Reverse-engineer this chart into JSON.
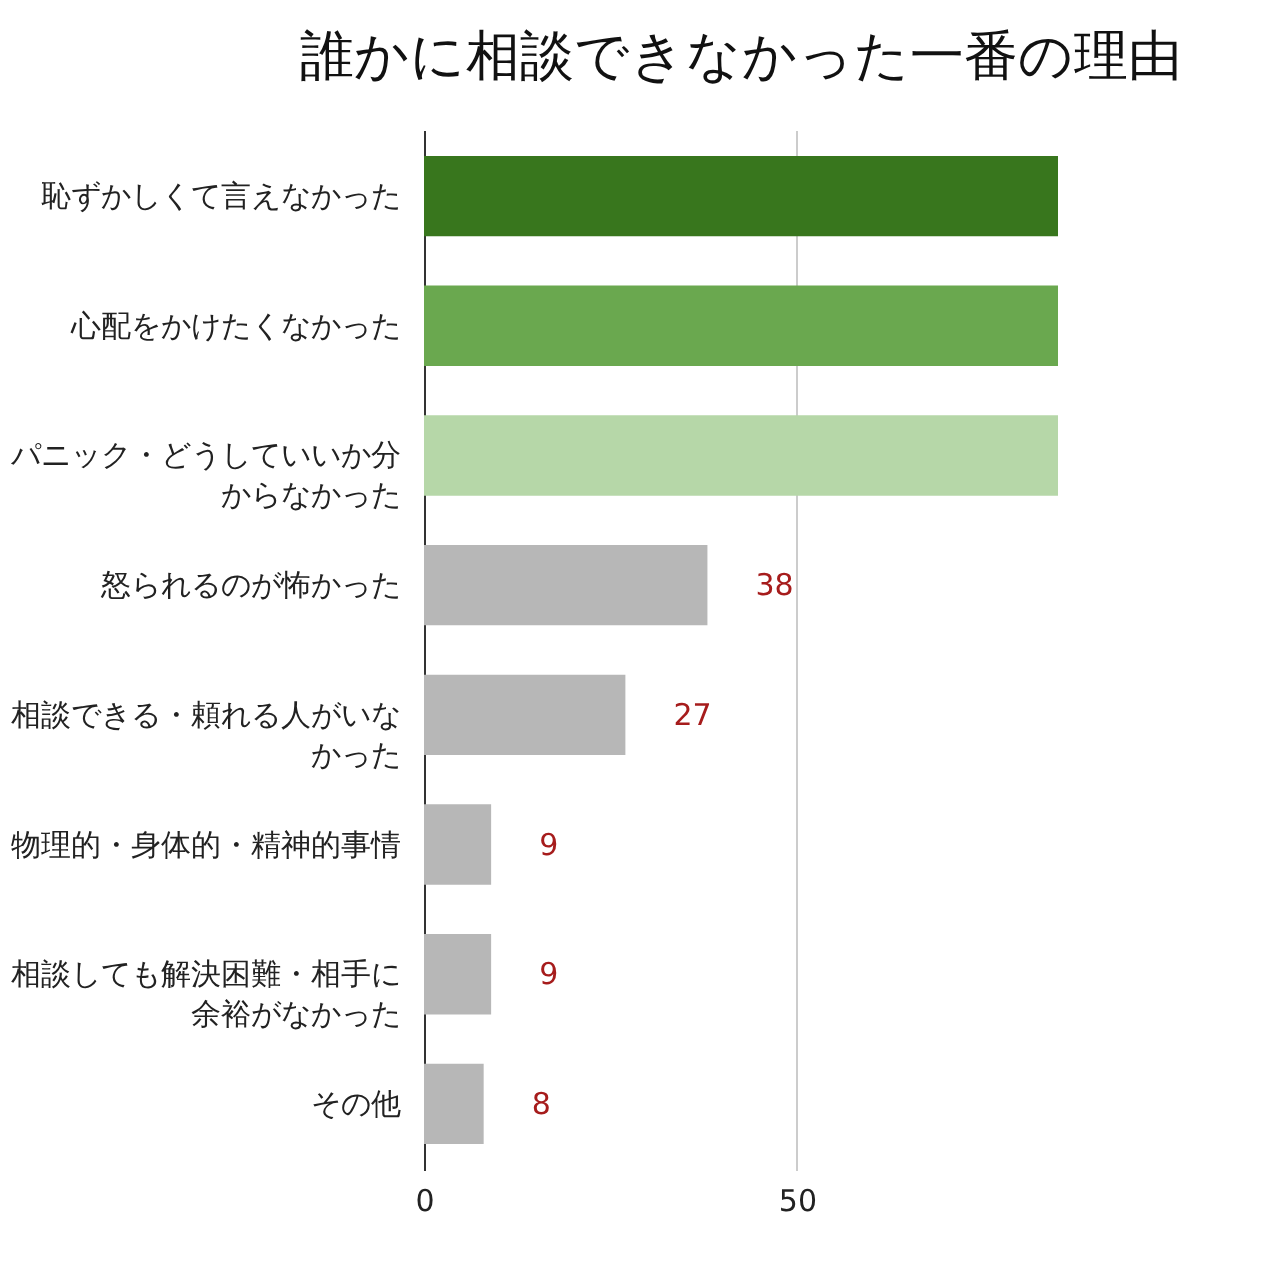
{
  "chart_data": {
    "type": "bar",
    "orientation": "horizontal",
    "title": "誰かに相談できなかった一番の理由",
    "categories": [
      "恥ずかしくて言えなかった",
      "心配をかけたくなかった",
      "パニック・どうしていいか分からなかった",
      "怒られるのが怖かった",
      "相談できる・頼れる人がいなかった",
      "物理的・身体的・精神的事情",
      "相談しても解決困難・相手に余裕がなかった",
      "その他"
    ],
    "values": [
      85,
      85,
      85,
      38,
      27,
      9,
      9,
      8
    ],
    "colors": [
      "#38761d",
      "#6aa84f",
      "#b6d7a8",
      "#b7b7b7",
      "#b7b7b7",
      "#b7b7b7",
      "#b7b7b7",
      "#b7b7b7"
    ],
    "value_labels": [
      null,
      null,
      null,
      "38",
      "27",
      "9",
      "9",
      "8"
    ],
    "xlim": [
      0,
      85
    ],
    "xticks": [
      0,
      50
    ],
    "grid": "x"
  }
}
